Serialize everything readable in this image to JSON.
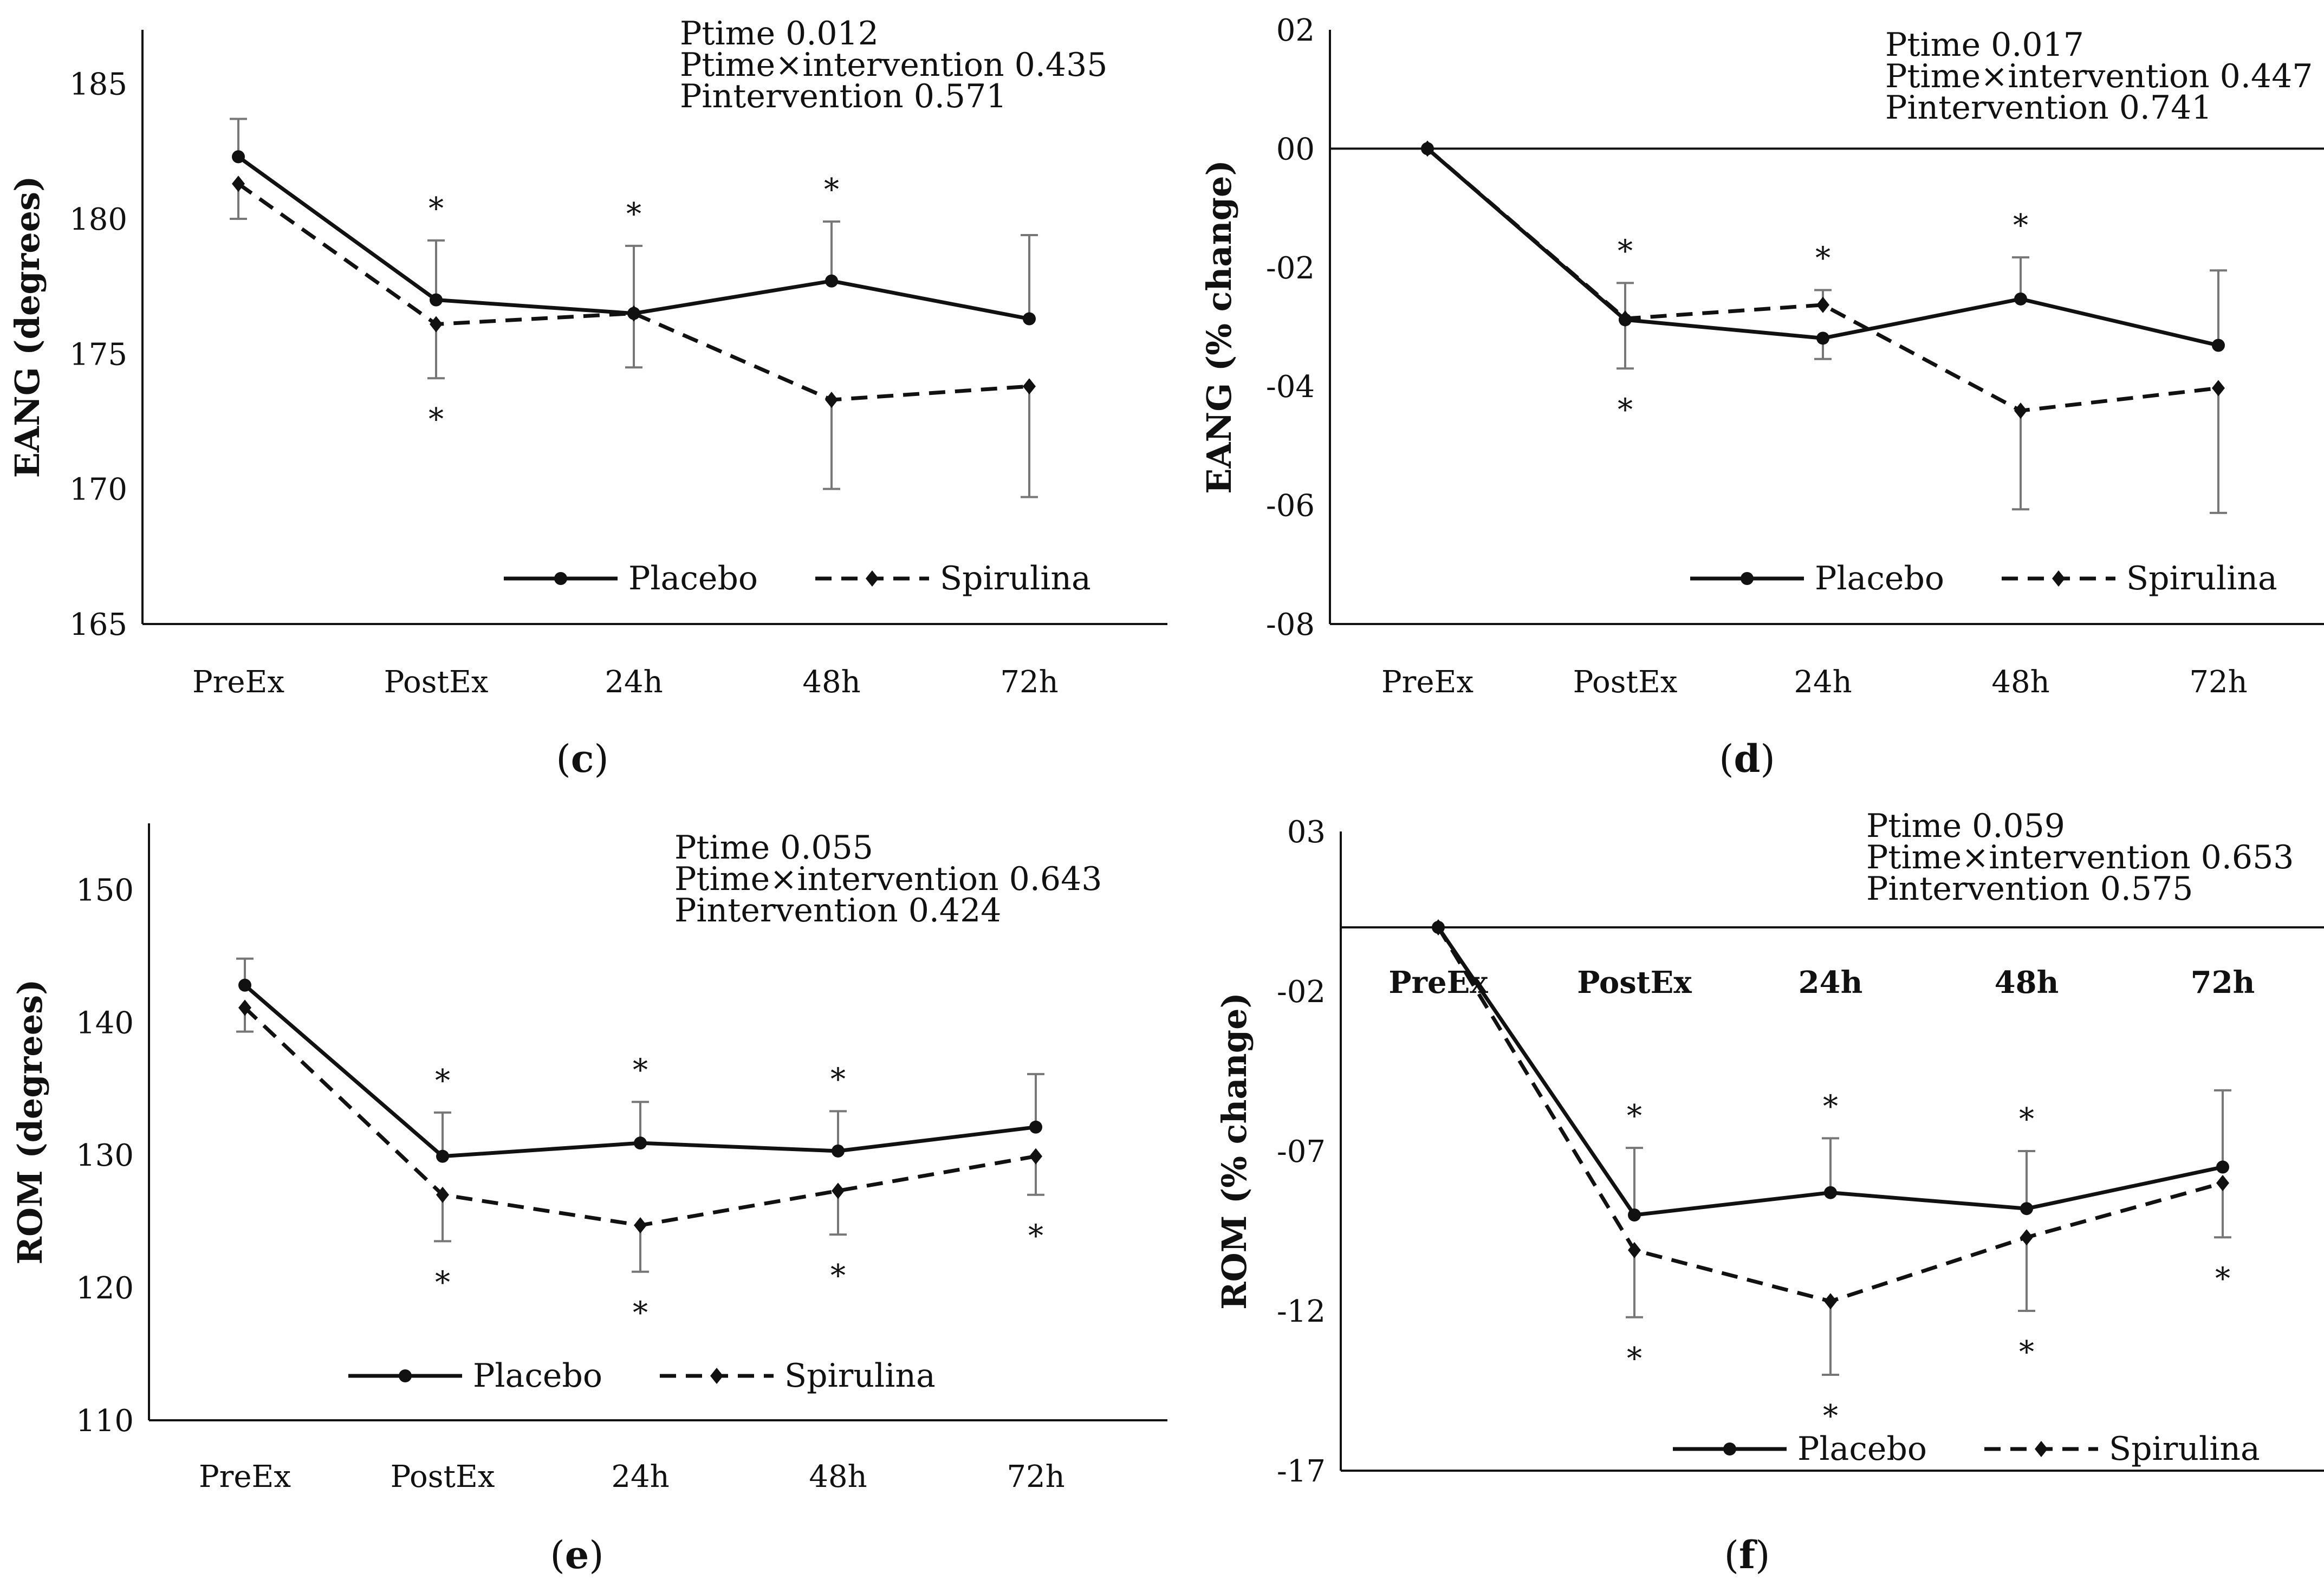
{
  "figure_labels": {
    "open": "(",
    "close": ")"
  },
  "chart_data": [
    {
      "id": "c",
      "panel_label": "c",
      "type": "line",
      "ylabel": "EANG (degrees)",
      "categories": [
        "PreEx",
        "PostEx",
        "24h",
        "48h",
        "72h"
      ],
      "yticks": [
        "165",
        "170",
        "175",
        "180",
        "185"
      ],
      "ylim": [
        165,
        187
      ],
      "series": [
        {
          "name": "Placebo",
          "values": [
            182.3,
            177.0,
            176.5,
            177.7,
            176.3
          ],
          "err_up": [
            1.4,
            2.2,
            2.5,
            2.2,
            3.1
          ],
          "err_down": [
            0,
            0,
            0,
            0,
            0
          ]
        },
        {
          "name": "Spirulina",
          "values": [
            181.3,
            176.1,
            176.5,
            173.3,
            173.8
          ],
          "err_up": [
            0,
            0,
            0,
            0,
            0
          ],
          "err_down": [
            1.3,
            2.0,
            2.0,
            3.3,
            4.1
          ]
        }
      ],
      "stats": [
        "Ptime 0.012",
        "Ptime×intervention 0.435",
        "Pintervention 0.571"
      ],
      "stars_above": [
        "",
        "*",
        "*",
        "*",
        ""
      ],
      "stars_below": [
        "",
        "*",
        "",
        "",
        ""
      ],
      "legend": [
        "Placebo",
        "Spirulina"
      ]
    },
    {
      "id": "d",
      "panel_label": "d",
      "type": "line",
      "ylabel": "EANG (% change)",
      "categories": [
        "PreEx",
        "PostEx",
        "24h",
        "48h",
        "72h"
      ],
      "yticks": [
        "-08",
        "-06",
        "-04",
        "-02",
        "00",
        "02"
      ],
      "ylim": [
        -8,
        2
      ],
      "zero_line": true,
      "series": [
        {
          "name": "Placebo",
          "values": [
            0,
            -2.88,
            -3.19,
            -2.53,
            -3.31
          ],
          "err_up": [
            0,
            0.62,
            0,
            0.7,
            1.26
          ],
          "err_down": [
            0,
            0,
            0.35,
            0,
            0
          ]
        },
        {
          "name": "Spirulina",
          "values": [
            0,
            -2.86,
            -2.63,
            -4.41,
            -4.03
          ],
          "err_up": [
            0,
            0,
            0.25,
            0,
            0
          ],
          "err_down": [
            0,
            0.84,
            0,
            1.66,
            2.1
          ]
        }
      ],
      "stats": [
        "Ptime 0.017",
        "Ptime×intervention 0.447",
        "Pintervention 0.741"
      ],
      "stars_above": [
        "",
        "*",
        "*",
        "*",
        ""
      ],
      "stars_below": [
        "",
        "*",
        "",
        "",
        ""
      ],
      "legend": [
        "Placebo",
        "Spirulina"
      ]
    },
    {
      "id": "e",
      "panel_label": "e",
      "type": "line",
      "ylabel": "ROM (degrees)",
      "categories": [
        "PreEx",
        "PostEx",
        "24h",
        "48h",
        "72h"
      ],
      "yticks": [
        "110",
        "120",
        "130",
        "140",
        "150"
      ],
      "ylim": [
        110,
        155
      ],
      "series": [
        {
          "name": "Placebo",
          "values": [
            142.8,
            129.9,
            130.9,
            130.3,
            132.1
          ],
          "err_up": [
            2.0,
            3.3,
            3.1,
            3.0,
            4.0
          ],
          "err_down": [
            0,
            0,
            0,
            0,
            0
          ]
        },
        {
          "name": "Spirulina",
          "values": [
            141.1,
            127.0,
            124.7,
            127.3,
            129.9
          ],
          "err_up": [
            0,
            0,
            0,
            0,
            0
          ],
          "err_down": [
            1.8,
            3.5,
            3.5,
            3.3,
            2.9
          ]
        }
      ],
      "stats": [
        "Ptime 0.055",
        "Ptime×intervention 0.643",
        "Pintervention 0.424"
      ],
      "stars_above": [
        "",
        "*",
        "*",
        "*",
        ""
      ],
      "stars_below": [
        "",
        "*",
        "*",
        "*",
        "*"
      ],
      "legend": [
        "Placebo",
        "Spirulina"
      ]
    },
    {
      "id": "f",
      "panel_label": "f",
      "type": "line",
      "ylabel": "ROM (% change)",
      "categories": [
        "PreEx",
        "PostEx",
        "24h",
        "48h",
        "72h"
      ],
      "yticks": [
        "-17",
        "-12",
        "-07",
        "-02",
        "03"
      ],
      "ylim": [
        -17,
        3
      ],
      "zero_line": true,
      "bold_categories": true,
      "series": [
        {
          "name": "Placebo",
          "values": [
            0,
            -9.0,
            -8.3,
            -8.8,
            -7.5
          ],
          "err_up": [
            0,
            2.1,
            1.7,
            1.8,
            2.4
          ],
          "err_down": [
            0,
            0,
            0,
            0,
            0
          ]
        },
        {
          "name": "Spirulina",
          "values": [
            0,
            -10.1,
            -11.7,
            -9.7,
            -8.0
          ],
          "err_up": [
            0,
            0,
            0,
            0,
            0
          ],
          "err_down": [
            0,
            2.1,
            2.3,
            2.3,
            1.7
          ]
        }
      ],
      "stats": [
        "Ptime 0.059",
        "Ptime×intervention 0.653",
        "Pintervention 0.575"
      ],
      "stars_above": [
        "",
        "*",
        "*",
        "*",
        ""
      ],
      "stars_below": [
        "",
        "*",
        "*",
        "*",
        "*"
      ],
      "legend": [
        "Placebo",
        "Spirulina"
      ]
    }
  ]
}
